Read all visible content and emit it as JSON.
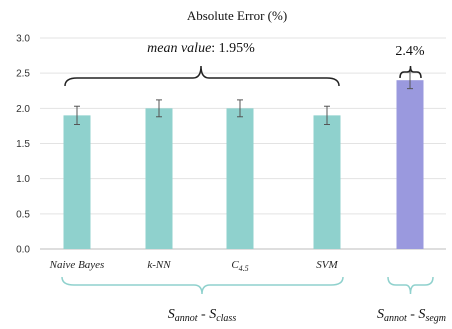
{
  "chart_data": {
    "type": "bar",
    "title": "Absolute Error (%)",
    "ylim": [
      0,
      3.0
    ],
    "yticks": [
      "0.0",
      "0.5",
      "1.0",
      "1.5",
      "2.0",
      "2.5",
      "3.0"
    ],
    "grid": true,
    "categories": [
      "Naive Bayes",
      "k-NN",
      "C4.5",
      "SVM",
      "Sannot - Ssegm"
    ],
    "values": [
      1.9,
      2.0,
      2.0,
      1.9,
      2.4
    ],
    "errors": [
      0.13,
      0.12,
      0.12,
      0.13,
      0.12
    ],
    "bar_colors": [
      "#8fd1cd",
      "#8fd1cd",
      "#8fd1cd",
      "#8fd1cd",
      "#9a99de"
    ],
    "annotations": {
      "class_mean": "mean value: 1.95%",
      "segm_value": "2.4%"
    },
    "groups": {
      "class": "Sannot - Sclass",
      "segm": "Sannot - Ssegm"
    },
    "brace_color": "#8fd1cd"
  }
}
